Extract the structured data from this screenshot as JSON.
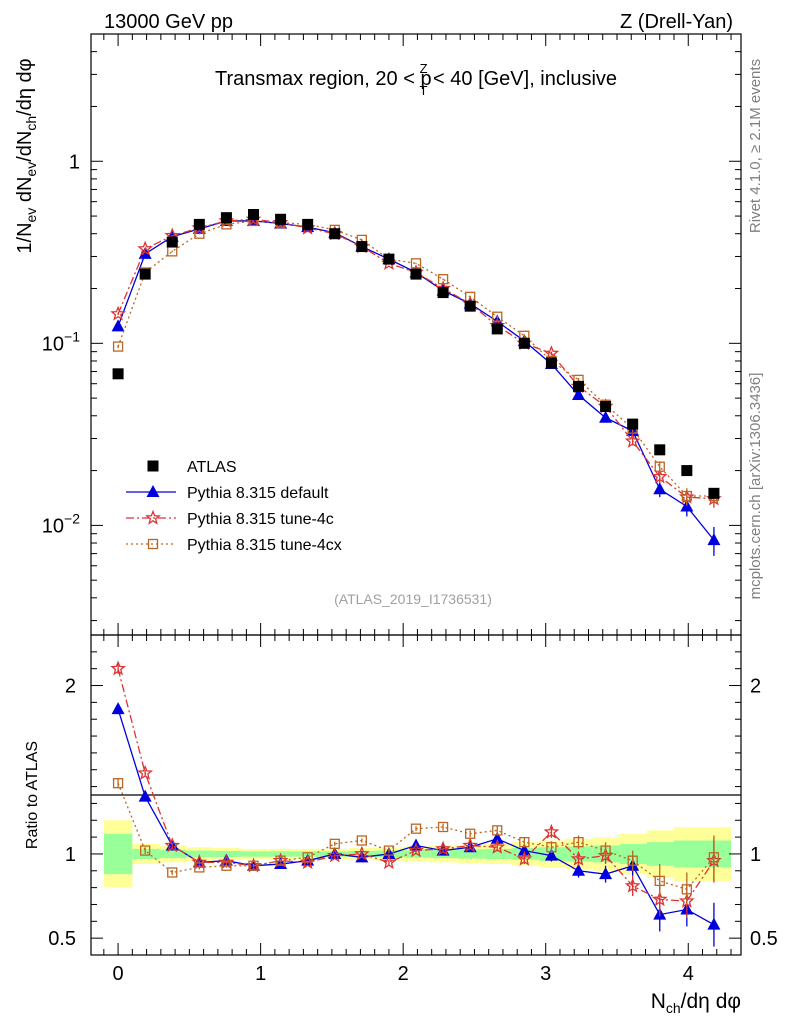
{
  "header": {
    "energy_label": "13000 GeV pp",
    "process_label": "Z (Drell-Yan)"
  },
  "side_labels": {
    "rivet": "Rivet 4.1.0, ≥ 2.1M events",
    "mcplots": "mcplots.cern.ch [arXiv:1306.3436]"
  },
  "chart_data": [
    {
      "type": "scatter",
      "panel": "main",
      "title": "Transmax region, 20 < p_T^Z < 40 [GeV], inclusive",
      "title_parts": {
        "before": "Transmax region, 20 < p",
        "sup": "Z",
        "sub": "T",
        "after": " < 40 [GeV], inclusive"
      },
      "ylabel": "1/N_ev dN_ev/dN_ch/dη dφ",
      "ylabel_parts": {
        "p1": "1/N",
        "s1": "ev",
        "p2": " dN",
        "s2": "ev",
        "p3": "/dN",
        "s3": "ch",
        "p4": "/dη dφ"
      },
      "yscale": "log",
      "ylim": [
        0.0025,
        5
      ],
      "y_ticks": [
        {
          "value": 1,
          "label": "1"
        },
        {
          "value": 0.1,
          "base": "10",
          "exp": "−1"
        },
        {
          "value": 0.01,
          "base": "10",
          "exp": "−2"
        }
      ],
      "xlim": [
        -0.19,
        4.37
      ],
      "x": [
        0.0,
        0.19,
        0.38,
        0.57,
        0.76,
        0.95,
        1.14,
        1.33,
        1.52,
        1.71,
        1.9,
        2.09,
        2.28,
        2.47,
        2.66,
        2.85,
        3.04,
        3.23,
        3.42,
        3.61,
        3.8,
        3.99,
        4.18
      ],
      "series": [
        {
          "name": "ATLAS",
          "marker": "square",
          "color": "#000000",
          "values": [
            0.068,
            0.24,
            0.36,
            0.45,
            0.49,
            0.51,
            0.48,
            0.45,
            0.4,
            0.34,
            0.29,
            0.24,
            0.19,
            0.16,
            0.12,
            0.1,
            0.078,
            0.058,
            0.045,
            0.036,
            0.026,
            0.02,
            0.015
          ]
        },
        {
          "name": "Pythia 8.315 default",
          "marker": "triangle",
          "color": "#0000dd",
          "line": "solid",
          "values": [
            0.124,
            0.31,
            0.385,
            0.425,
            0.47,
            0.47,
            0.455,
            0.435,
            0.405,
            0.34,
            0.29,
            0.245,
            0.195,
            0.165,
            0.132,
            0.103,
            0.077,
            0.052,
            0.039,
            0.033,
            0.0158,
            0.0127,
            0.0083
          ],
          "errors": [
            0.002,
            0.003,
            0.003,
            0.003,
            0.003,
            0.003,
            0.003,
            0.003,
            0.003,
            0.003,
            0.002,
            0.002,
            0.002,
            0.002,
            0.002,
            0.002,
            0.002,
            0.0015,
            0.0015,
            0.0015,
            0.0015,
            0.0015,
            0.0015
          ]
        },
        {
          "name": "Pythia 8.315 tune-4c",
          "marker": "star",
          "color": "#dd3333",
          "line": "dashdot",
          "values": [
            0.145,
            0.33,
            0.39,
            0.43,
            0.47,
            0.48,
            0.46,
            0.43,
            0.4,
            0.34,
            0.275,
            0.245,
            0.2,
            0.165,
            0.125,
            0.1,
            0.088,
            0.058,
            0.045,
            0.029,
            0.0185,
            0.0143,
            0.014
          ],
          "errors": [
            0.002,
            0.003,
            0.003,
            0.003,
            0.003,
            0.003,
            0.003,
            0.003,
            0.003,
            0.003,
            0.002,
            0.002,
            0.002,
            0.002,
            0.002,
            0.002,
            0.002,
            0.0015,
            0.0015,
            0.0015,
            0.0015,
            0.0015,
            0.0015
          ]
        },
        {
          "name": "Pythia 8.315 tune-4cx",
          "marker": "open-square",
          "color": "#bb6622",
          "line": "dotted",
          "values": [
            0.096,
            0.245,
            0.32,
            0.4,
            0.45,
            0.47,
            0.46,
            0.45,
            0.42,
            0.37,
            0.29,
            0.275,
            0.225,
            0.18,
            0.14,
            0.11,
            0.08,
            0.063,
            0.046,
            0.034,
            0.021,
            0.0145,
            0.0145
          ],
          "errors": [
            0.002,
            0.003,
            0.003,
            0.003,
            0.003,
            0.003,
            0.003,
            0.003,
            0.003,
            0.003,
            0.002,
            0.002,
            0.002,
            0.002,
            0.002,
            0.002,
            0.002,
            0.0015,
            0.0015,
            0.0015,
            0.0015,
            0.0015,
            0.0015
          ]
        }
      ],
      "legend_position": "center-left",
      "watermark": "(ATLAS_2019_I1736531)"
    },
    {
      "type": "scatter",
      "panel": "ratio",
      "ylabel": "Ratio to ATLAS",
      "xlabel": "N_ch/dη dφ",
      "xlabel_parts": {
        "p1": "N",
        "s1": "ch",
        "p2": "/dη dφ"
      },
      "ylim": [
        0.4,
        2.3
      ],
      "y_ticks": [
        {
          "value": 0.5,
          "label": "0.5"
        },
        {
          "value": 1,
          "label": "1"
        },
        {
          "value": 2,
          "label": "2"
        }
      ],
      "x_ticks": [
        {
          "value": 0,
          "label": "0"
        },
        {
          "value": 1,
          "label": "1"
        },
        {
          "value": 2,
          "label": "2"
        },
        {
          "value": 3,
          "label": "3"
        },
        {
          "value": 4,
          "label": "4"
        }
      ],
      "x": [
        0.0,
        0.19,
        0.38,
        0.57,
        0.76,
        0.95,
        1.14,
        1.33,
        1.52,
        1.71,
        1.9,
        2.09,
        2.28,
        2.47,
        2.66,
        2.85,
        3.04,
        3.23,
        3.42,
        3.61,
        3.8,
        3.99,
        4.18
      ],
      "band_edges": [
        -0.1,
        0.1,
        0.29,
        0.48,
        0.67,
        0.86,
        1.05,
        1.24,
        1.43,
        1.62,
        1.81,
        2.0,
        2.19,
        2.38,
        2.57,
        2.76,
        2.95,
        3.14,
        3.33,
        3.52,
        3.71,
        3.9,
        4.09,
        4.3
      ],
      "band_stat": [
        0.12,
        0.03,
        0.025,
        0.02,
        0.018,
        0.016,
        0.016,
        0.016,
        0.016,
        0.018,
        0.02,
        0.022,
        0.025,
        0.028,
        0.03,
        0.035,
        0.04,
        0.045,
        0.05,
        0.06,
        0.07,
        0.08,
        0.08
      ],
      "band_total": [
        0.2,
        0.06,
        0.05,
        0.04,
        0.035,
        0.03,
        0.03,
        0.03,
        0.03,
        0.035,
        0.04,
        0.045,
        0.05,
        0.055,
        0.06,
        0.07,
        0.08,
        0.09,
        0.1,
        0.12,
        0.14,
        0.16,
        0.16
      ],
      "series": [
        {
          "name": "Pythia 8.315 default",
          "color": "#0000dd",
          "values": [
            1.86,
            1.34,
            1.05,
            0.95,
            0.96,
            0.93,
            0.94,
            0.96,
            1.0,
            0.98,
            1.0,
            1.05,
            1.02,
            1.04,
            1.09,
            1.02,
            0.99,
            0.9,
            0.88,
            0.93,
            0.64,
            0.67,
            0.58
          ],
          "errors": [
            0.03,
            0.02,
            0.015,
            0.012,
            0.012,
            0.01,
            0.01,
            0.01,
            0.012,
            0.012,
            0.015,
            0.015,
            0.02,
            0.02,
            0.025,
            0.03,
            0.035,
            0.04,
            0.05,
            0.06,
            0.1,
            0.1,
            0.13
          ]
        },
        {
          "name": "Pythia 8.315 tune-4c",
          "color": "#dd3333",
          "values": [
            2.1,
            1.48,
            1.05,
            0.95,
            0.95,
            0.93,
            0.96,
            0.95,
            0.99,
            1.0,
            0.95,
            1.02,
            1.03,
            1.05,
            1.04,
            0.97,
            1.13,
            0.97,
            0.99,
            0.81,
            0.73,
            0.72,
            0.96
          ],
          "errors": [
            0.03,
            0.02,
            0.015,
            0.012,
            0.012,
            0.01,
            0.01,
            0.01,
            0.012,
            0.012,
            0.015,
            0.015,
            0.02,
            0.02,
            0.025,
            0.03,
            0.035,
            0.04,
            0.05,
            0.06,
            0.1,
            0.1,
            0.13
          ]
        },
        {
          "name": "Pythia 8.315 tune-4cx",
          "color": "#bb6622",
          "values": [
            1.42,
            1.02,
            0.89,
            0.92,
            0.93,
            0.93,
            0.96,
            0.98,
            1.06,
            1.08,
            1.02,
            1.15,
            1.16,
            1.12,
            1.14,
            1.07,
            1.04,
            1.07,
            1.02,
            0.96,
            0.84,
            0.79,
            0.98
          ],
          "errors": [
            0.03,
            0.02,
            0.015,
            0.012,
            0.012,
            0.01,
            0.01,
            0.01,
            0.012,
            0.012,
            0.015,
            0.015,
            0.02,
            0.02,
            0.025,
            0.03,
            0.035,
            0.04,
            0.05,
            0.06,
            0.1,
            0.1,
            0.13
          ]
        }
      ]
    }
  ]
}
